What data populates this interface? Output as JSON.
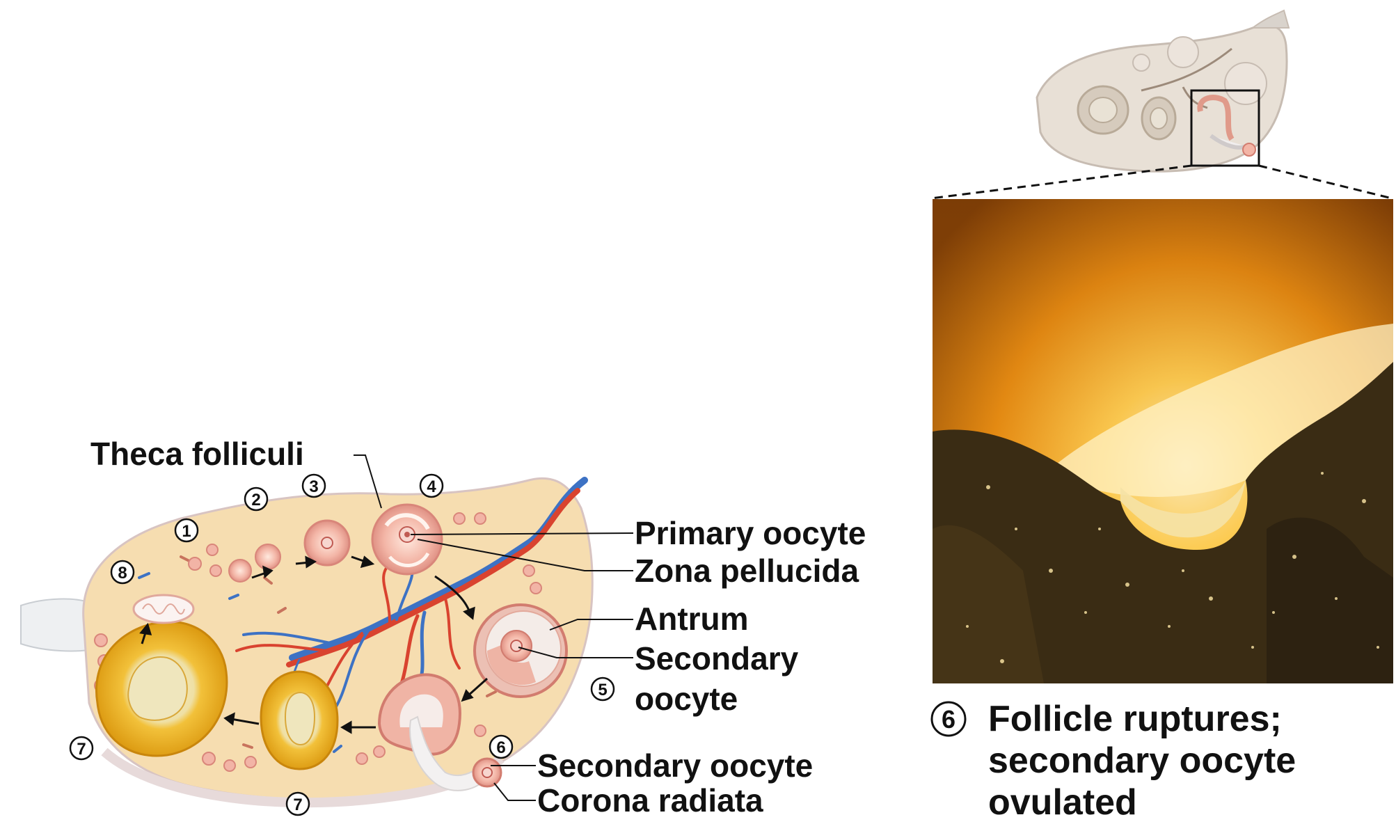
{
  "labels": {
    "theca_folliculi": "Theca folliculi",
    "primary_oocyte": "Primary oocyte",
    "zona_pellucida": "Zona pellucida",
    "antrum": "Antrum",
    "secondary_oocyte_l1": "Secondary",
    "secondary_oocyte_l2": "oocyte",
    "secondary_oocyte_bottom": "Secondary oocyte",
    "corona_radiata": "Corona radiata"
  },
  "stages": [
    "1",
    "2",
    "3",
    "4",
    "5",
    "6",
    "7",
    "7",
    "8"
  ],
  "caption": {
    "number": "6",
    "line1": "Follicle ruptures;",
    "line2": "secondary oocyte",
    "line3": "ovulated"
  },
  "colors": {
    "ovary_stroma": "#f6ddb0",
    "ovary_outline": "#d6c2c0",
    "follicle_pink": "#f2b4a6",
    "corpus_luteum": "#f0b829",
    "artery_red": "#d9432f",
    "vein_blue": "#3d72c4",
    "photo_glow": "#f3a016",
    "photo_dark": "#2e2412"
  }
}
